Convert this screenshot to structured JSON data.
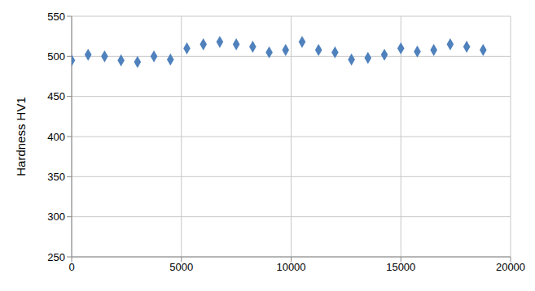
{
  "chart_data": {
    "type": "scatter",
    "y_label": "Hardness HV1",
    "x": [
      0,
      750,
      1500,
      2250,
      3000,
      3750,
      4500,
      5250,
      6000,
      6750,
      7500,
      8250,
      9000,
      9750,
      10500,
      11250,
      12000,
      12750,
      13500,
      14250,
      15000,
      15750,
      16500,
      17250,
      18000,
      18750
    ],
    "values": [
      495,
      502,
      500,
      495,
      493,
      500,
      496,
      510,
      515,
      518,
      515,
      512,
      505,
      508,
      518,
      508,
      505,
      496,
      498,
      502,
      510,
      506,
      508,
      515,
      512,
      508
    ],
    "color": "#4f81bd",
    "marker": "diamond",
    "xlim": [
      0,
      20000
    ],
    "xticks": [
      0,
      5000,
      10000,
      15000,
      20000
    ],
    "ylim": [
      250,
      550
    ],
    "yticks": [
      250,
      300,
      350,
      400,
      450,
      500,
      550
    ],
    "grid": true
  }
}
